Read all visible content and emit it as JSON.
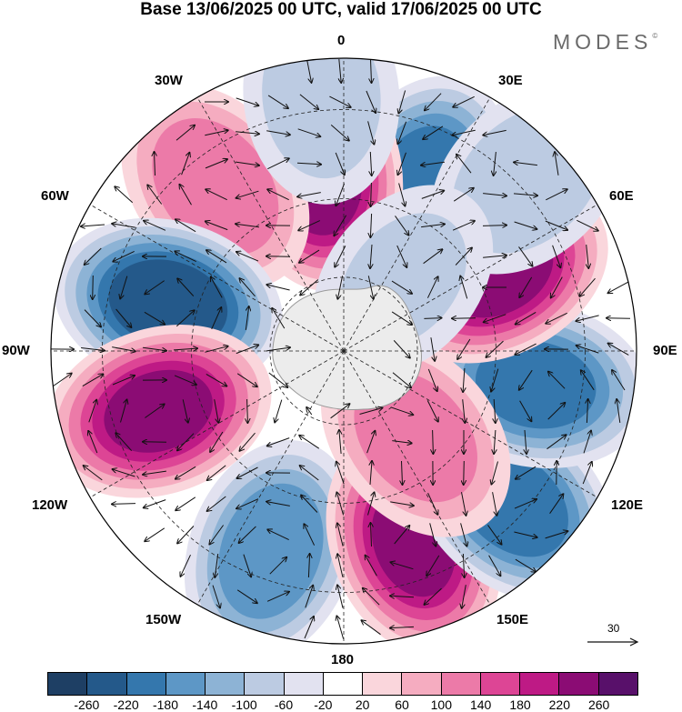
{
  "title": "Base 13/06/2025 00 UTC, valid 17/06/2025 00 UTC",
  "brand": {
    "text": "MODES",
    "mark": "©"
  },
  "lon_labels": {
    "l0": "0",
    "l30e": "30E",
    "l60e": "60E",
    "l90e": "90E",
    "l120e": "120E",
    "l150e": "150E",
    "l180": "180",
    "l150w": "150W",
    "l120w": "120W",
    "l90w": "90W",
    "l60w": "60W",
    "l30w": "30W"
  },
  "reference_vector": {
    "label": "30",
    "direction": "arrow-right-icon"
  },
  "colorbar": {
    "colors": [
      "#1e3f64",
      "#24598a",
      "#3477ad",
      "#5d97c6",
      "#8db3d5",
      "#bccbe2",
      "#e2e2f0",
      "#ffffff",
      "#fad6dc",
      "#f5acc0",
      "#ec7aa8",
      "#dd4595",
      "#be1a85",
      "#8b0c74",
      "#58106a"
    ],
    "labels": [
      "-260",
      "-220",
      "-180",
      "-140",
      "-100",
      "-60",
      "-20",
      "20",
      "60",
      "100",
      "140",
      "180",
      "220",
      "260"
    ]
  },
  "map": {
    "projection": "south-polar-stereographic",
    "land_color": "#ececec",
    "coast_color": "#9a9a9a",
    "anomalies": [
      {
        "lon": 25,
        "lat": -43,
        "value": -200
      },
      {
        "lon": 352,
        "lat": -44,
        "value": 240
      },
      {
        "lon": 322,
        "lat": -37,
        "value": 130
      },
      {
        "lon": 285,
        "lat": -43,
        "value": -240
      },
      {
        "lon": 252,
        "lat": -40,
        "value": 220
      },
      {
        "lon": 200,
        "lat": -36,
        "value": -170
      },
      {
        "lon": 160,
        "lat": -38,
        "value": 220
      },
      {
        "lon": 132,
        "lat": -33,
        "value": -200
      },
      {
        "lon": 100,
        "lat": -40,
        "value": -190
      },
      {
        "lon": 63,
        "lat": -45,
        "value": 230
      },
      {
        "lon": 140,
        "lat": -60,
        "value": 120
      },
      {
        "lon": 47,
        "lat": -28,
        "value": -90
      },
      {
        "lon": 355,
        "lat": -27,
        "value": -80
      },
      {
        "lon": 40,
        "lat": -65,
        "value": -60
      }
    ]
  }
}
